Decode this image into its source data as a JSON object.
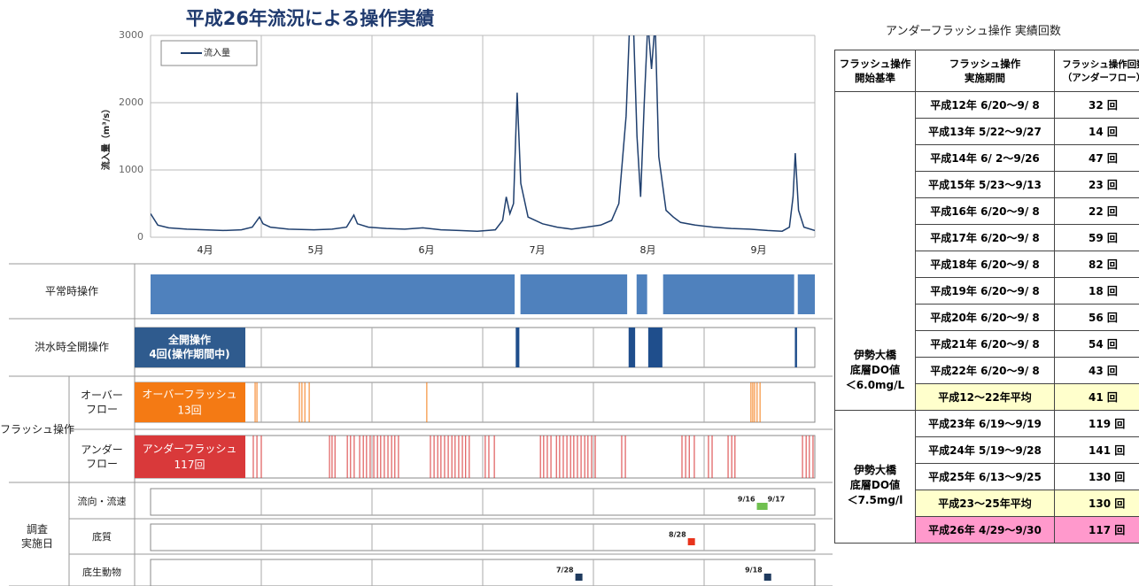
{
  "chart_data": {
    "type": "line",
    "title": "平成26年流況による操作実績",
    "ylabel": "流入量（m³/s）",
    "x": [
      0,
      2,
      5,
      10,
      15,
      20,
      25,
      28,
      30,
      31,
      33,
      38,
      45,
      50,
      54,
      56,
      57,
      60,
      65,
      70,
      75,
      80,
      85,
      90,
      95,
      97,
      98,
      99,
      100,
      101,
      102,
      104,
      108,
      112,
      116,
      120,
      124,
      127,
      129,
      131,
      132,
      133,
      134,
      135,
      136,
      137,
      138,
      139,
      140,
      142,
      144,
      146,
      150,
      155,
      160,
      165,
      170,
      174,
      176,
      177,
      177.6,
      178.5,
      180,
      183
    ],
    "series": [
      {
        "name": "流入量",
        "color": "#1f3f6e",
        "values": [
          350,
          180,
          140,
          120,
          110,
          100,
          110,
          150,
          300,
          200,
          150,
          120,
          110,
          120,
          150,
          330,
          200,
          150,
          130,
          120,
          140,
          110,
          100,
          90,
          110,
          250,
          600,
          350,
          500,
          2150,
          800,
          300,
          200,
          150,
          120,
          150,
          180,
          250,
          500,
          1800,
          3200,
          3200,
          1500,
          600,
          2000,
          3200,
          2500,
          3200,
          1200,
          400,
          300,
          220,
          180,
          150,
          130,
          120,
          100,
          90,
          150,
          600,
          1250,
          400,
          150,
          100
        ]
      }
    ],
    "xlim": [
      0,
      183
    ],
    "xticks": [
      {
        "value": 15,
        "label": "4月"
      },
      {
        "value": 45.5,
        "label": "5月"
      },
      {
        "value": 76,
        "label": "6月"
      },
      {
        "value": 106.5,
        "label": "7月"
      },
      {
        "value": 137,
        "label": "8月"
      },
      {
        "value": 167.5,
        "label": "9月"
      }
    ],
    "xgrid": [
      0,
      30.5,
      61,
      91.5,
      122,
      152.5,
      183
    ],
    "ylim": [
      0,
      3000
    ],
    "yticks": [
      0,
      1000,
      2000,
      3000
    ],
    "grid": true
  },
  "timeline": {
    "normal": {
      "label": "平常時操作",
      "color": "#4f81bd",
      "intervals": [
        [
          0,
          100.3
        ],
        [
          101.9,
          131.3
        ],
        [
          133.9,
          136.8
        ],
        [
          141.2,
          177.3
        ],
        [
          178.3,
          183
        ]
      ]
    },
    "flood": {
      "label": "洪水時全開操作",
      "box": "全開操作\n4回(操作期間中)",
      "color": "#1f4e8c",
      "intervals": [
        [
          100.6,
          101.6
        ],
        [
          131.7,
          133.5
        ],
        [
          137.1,
          141
        ],
        [
          177.5,
          178.1
        ]
      ]
    },
    "flush": {
      "label": "フラッシュ操作",
      "over": {
        "label": "オーバー\nフロー",
        "box": "オーバーフラッシュ\n13回",
        "color": "#f47a14",
        "days": [
          28.8,
          29.3,
          41,
          41.7,
          42.5,
          43.7,
          76.1,
          165.4,
          165.9,
          166.4,
          167.1,
          167.9
        ]
      },
      "under": {
        "label": "アンダー\nフロー",
        "box": "アンダーフラッシュ\n117回",
        "color": "#d9393a",
        "days": [
          28.3,
          29.3,
          30.5,
          49.3,
          50,
          50.8,
          54.2,
          55.1,
          56.1,
          57.6,
          58.6,
          59.5,
          60.5,
          61.5,
          62.5,
          63.4,
          64.4,
          65.4,
          66.4,
          67.3,
          68.3,
          77.1,
          78.1,
          79.1,
          80,
          81,
          82,
          83,
          83.9,
          84.9,
          85.9,
          86.8,
          87.8,
          92.2,
          93.2,
          94.7,
          107.4,
          108.3,
          109.3,
          110.3,
          111.8,
          112.7,
          113.7,
          114.7,
          115.7,
          116.6,
          117.6,
          118.6,
          119.6,
          120.5,
          121.5,
          122.5,
          129.8,
          130.8,
          146.4,
          147.4,
          148.4,
          149.8,
          153.7,
          154.7,
          159.1,
          160.1,
          161,
          179.6,
          180.6,
          181.5,
          182.5
        ]
      }
    },
    "survey": {
      "label": "調査\n実施日",
      "rows": [
        {
          "label": "流向・流速",
          "color": "#70c050",
          "events": [
            {
              "label": "9/16",
              "day": 168
            },
            {
              "label": "9/17",
              "day": 169
            }
          ]
        },
        {
          "label": "底質",
          "color": "#e8341c",
          "events": [
            {
              "label": "8/28",
              "day": 149
            }
          ]
        },
        {
          "label": "底生動物",
          "color": "#1f3a5e",
          "events": [
            {
              "label": "7/28",
              "day": 118
            },
            {
              "label": "9/18",
              "day": 170
            }
          ]
        }
      ]
    }
  },
  "table": {
    "title": "アンダーフラッシュ操作 実績回数",
    "header": [
      "フラッシュ操作\n開始基準",
      "フラッシュ操作\n実施期間",
      "フラッシュ操作回数\n（アンダーフロー）"
    ],
    "groups": [
      {
        "criterion": "伊勢大橋\n底層DO値\n＜6.0mg/L",
        "rows": [
          {
            "period": "平成12年 6/20～9/ 8",
            "count": "32 回"
          },
          {
            "period": "平成13年 5/22～9/27",
            "count": "14 回"
          },
          {
            "period": "平成14年 6/ 2～9/26",
            "count": "47 回"
          },
          {
            "period": "平成15年 5/23～9/13",
            "count": "23 回"
          },
          {
            "period": "平成16年 6/20～9/ 8",
            "count": "22 回"
          },
          {
            "period": "平成17年 6/20～9/ 8",
            "count": "59 回"
          },
          {
            "period": "平成18年 6/20～9/ 8",
            "count": "82 回"
          },
          {
            "period": "平成19年 6/20～9/ 8",
            "count": "18 回"
          },
          {
            "period": "平成20年 6/20～9/ 8",
            "count": "56 回"
          },
          {
            "period": "平成21年 6/20～9/ 8",
            "count": "54 回"
          },
          {
            "period": "平成22年 6/20～9/ 8",
            "count": "43 回"
          },
          {
            "period": "平成12～22年平均",
            "count": "41 回",
            "fill": "#ffffcc"
          }
        ]
      },
      {
        "criterion": "伊勢大橋\n底層DO値\n＜7.5mg/l",
        "rows": [
          {
            "period": "平成23年 6/19～9/19",
            "count": "119 回"
          },
          {
            "period": "平成24年 5/19～9/28",
            "count": "141 回"
          },
          {
            "period": "平成25年 6/13～9/25",
            "count": "130 回"
          },
          {
            "period": "平成23～25年平均",
            "count": "130 回",
            "fill": "#ffffcc"
          },
          {
            "period": "平成26年 4/29～9/30",
            "count": "117 回",
            "fill": "#ff99cc"
          }
        ]
      }
    ]
  }
}
